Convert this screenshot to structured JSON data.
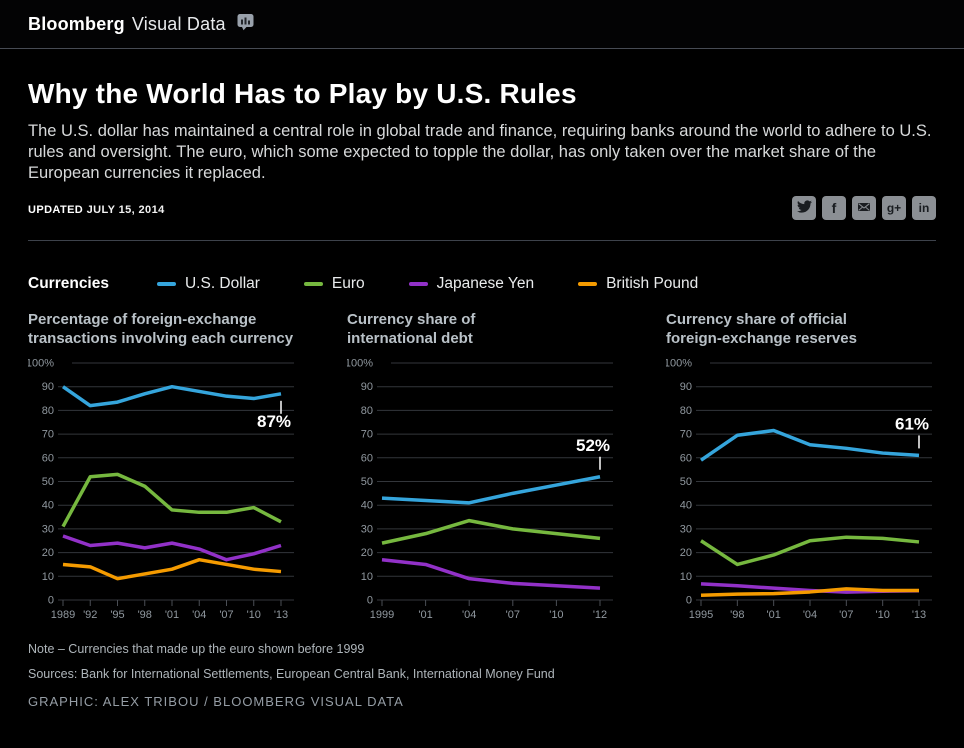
{
  "header": {
    "brand_bold": "Bloomberg",
    "brand_light": "Visual Data"
  },
  "article": {
    "title": "Why the World Has to Play by U.S. Rules",
    "subtitle": "The U.S. dollar has maintained a central role in global trade and finance, requiring banks around the world to adhere to U.S. rules and oversight. The euro, which some expected to topple the dollar, has only taken over the market share of the European currencies it replaced.",
    "updated_label": "UPDATED",
    "updated_date": "JULY 15, 2014"
  },
  "social": {
    "icons": [
      "twitter",
      "facebook",
      "email",
      "google-plus",
      "linkedin"
    ],
    "glyphs": {
      "facebook": "f",
      "google_plus": "g+",
      "linkedin": "in"
    }
  },
  "legend": {
    "title": "Currencies",
    "items": [
      {
        "label": "U.S. Dollar",
        "color": "#35a5dc"
      },
      {
        "label": "Euro",
        "color": "#76b83f"
      },
      {
        "label": "Japanese Yen",
        "color": "#9231c8"
      },
      {
        "label": "British Pound",
        "color": "#f59b00"
      }
    ]
  },
  "chart_data": [
    {
      "type": "line",
      "title": "Percentage of foreign-exchange\ntransactions involving each currency",
      "categories": [
        "1989",
        "'92",
        "'95",
        "'98",
        "'01",
        "'04",
        "'07",
        "'10",
        "'13"
      ],
      "ylim": [
        0,
        100
      ],
      "yticks": [
        0,
        10,
        20,
        30,
        40,
        50,
        60,
        70,
        80,
        90,
        100
      ],
      "grid": true,
      "series": [
        {
          "name": "U.S. Dollar",
          "color": "#35a5dc",
          "values": [
            90,
            82,
            83.5,
            87,
            90,
            88,
            86,
            85,
            87
          ]
        },
        {
          "name": "Euro",
          "color": "#76b83f",
          "values": [
            31,
            52,
            53,
            48,
            38,
            37,
            37,
            39,
            33
          ]
        },
        {
          "name": "Japanese Yen",
          "color": "#9231c8",
          "values": [
            27,
            23,
            24,
            22,
            24,
            21.5,
            17,
            19.5,
            23
          ]
        },
        {
          "name": "British Pound",
          "color": "#f59b00",
          "values": [
            15,
            14,
            9,
            11,
            13,
            17,
            15,
            13,
            12
          ]
        }
      ],
      "annotation": {
        "text": "87%",
        "series": "U.S. Dollar",
        "position": "below"
      }
    },
    {
      "type": "line",
      "title": "Currency share of\ninternational debt",
      "categories": [
        "1999",
        "'01",
        "'04",
        "'07",
        "'10",
        "'12"
      ],
      "ylim": [
        0,
        100
      ],
      "yticks": [
        0,
        10,
        20,
        30,
        40,
        50,
        60,
        70,
        80,
        90,
        100
      ],
      "grid": true,
      "series": [
        {
          "name": "U.S. Dollar",
          "color": "#35a5dc",
          "values": [
            43,
            42,
            41,
            45,
            48.5,
            52
          ]
        },
        {
          "name": "Euro",
          "color": "#76b83f",
          "values": [
            24,
            28,
            33.5,
            30,
            28,
            26
          ]
        },
        {
          "name": "Japanese Yen",
          "color": "#9231c8",
          "values": [
            17,
            15,
            9,
            7,
            6,
            5
          ]
        }
      ],
      "annotation": {
        "text": "52%",
        "series": "U.S. Dollar",
        "position": "above"
      }
    },
    {
      "type": "line",
      "title": "Currency share of official\nforeign-exchange reserves",
      "categories": [
        "1995",
        "'98",
        "'01",
        "'04",
        "'07",
        "'10",
        "'13"
      ],
      "ylim": [
        0,
        100
      ],
      "yticks": [
        0,
        10,
        20,
        30,
        40,
        50,
        60,
        70,
        80,
        90,
        100
      ],
      "grid": true,
      "series": [
        {
          "name": "U.S. Dollar",
          "color": "#35a5dc",
          "values": [
            59,
            69.5,
            71.5,
            65.5,
            64,
            62,
            61
          ]
        },
        {
          "name": "Euro",
          "color": "#76b83f",
          "values": [
            25,
            15,
            19,
            25,
            26.5,
            26,
            24.5
          ]
        },
        {
          "name": "Japanese Yen",
          "color": "#9231c8",
          "values": [
            6.8,
            6,
            5,
            4,
            3.3,
            3.7,
            3.9
          ]
        },
        {
          "name": "British Pound",
          "color": "#f59b00",
          "values": [
            2,
            2.5,
            2.7,
            3.4,
            4.7,
            4,
            4
          ]
        }
      ],
      "annotation": {
        "text": "61%",
        "series": "U.S. Dollar",
        "position": "above"
      }
    }
  ],
  "footer": {
    "note": "Note – Currencies that made up the euro shown before 1999",
    "sources": "Sources: Bank for International Settlements, European Central Bank, International Money Fund",
    "credit": "GRAPHIC: ALEX TRIBOU / BLOOMBERG VISUAL DATA"
  },
  "colors": {
    "background": "#000000",
    "grid": "#33363b",
    "axis_text": "#90989f",
    "annotation_text": "#ffffff"
  }
}
